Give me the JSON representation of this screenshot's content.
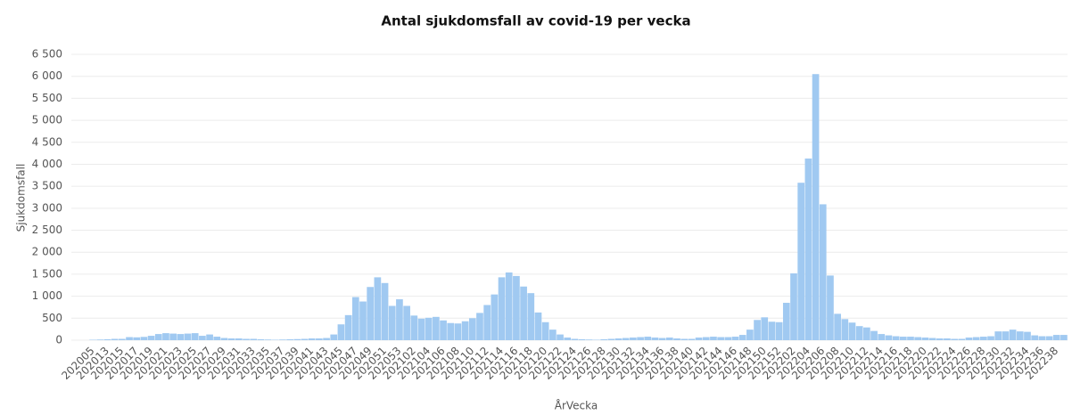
{
  "chart_data": {
    "type": "bar",
    "title": "Antal sjukdomsfall av covid-19 per vecka",
    "x_label": "ÅrVecka",
    "y_label": "Sjukdomsfall",
    "color": "#a0c9f1",
    "grid": true,
    "categories": [
      "202005",
      null,
      "202013",
      null,
      "202015",
      null,
      "202017",
      null,
      "202019",
      null,
      "202021",
      null,
      "202023",
      null,
      "202025",
      null,
      "202027",
      null,
      "202029",
      null,
      "202031",
      null,
      "202033",
      null,
      "202035",
      null,
      "202037",
      null,
      "202039",
      null,
      "202041",
      null,
      "202043",
      null,
      "202045",
      null,
      "202047",
      null,
      "202049",
      null,
      "202051",
      null,
      "202053",
      null,
      "202102",
      null,
      "202104",
      null,
      "202106",
      null,
      "202108",
      null,
      "202110",
      null,
      "202112",
      null,
      "202114",
      null,
      "202116",
      null,
      "202118",
      null,
      "202120",
      null,
      "202122",
      null,
      "202124",
      null,
      "202126",
      null,
      "202128",
      null,
      "202130",
      null,
      "202132",
      null,
      "202134",
      null,
      "202136",
      null,
      "202138",
      null,
      "202140",
      null,
      "202142",
      null,
      "202144",
      null,
      "202146",
      null,
      "202148",
      null,
      "202150",
      null,
      "202152",
      null,
      "202202",
      null,
      "202204",
      null,
      "202206",
      null,
      "202208",
      null,
      "202210",
      null,
      "202212",
      null,
      "202214",
      null,
      "202216",
      null,
      "202218",
      null,
      "202220",
      null,
      "202222",
      null,
      "202224",
      null,
      "202226",
      null,
      "202228",
      null,
      "202230",
      null,
      "202232",
      null,
      "202234",
      null,
      "202236",
      null,
      "202238",
      null
    ],
    "values": [
      10,
      15,
      20,
      30,
      30,
      70,
      65,
      75,
      100,
      140,
      160,
      150,
      140,
      150,
      160,
      100,
      130,
      80,
      50,
      40,
      40,
      30,
      30,
      20,
      15,
      10,
      15,
      20,
      25,
      30,
      40,
      40,
      50,
      130,
      360,
      570,
      980,
      880,
      1210,
      1430,
      1300,
      780,
      930,
      780,
      560,
      490,
      510,
      530,
      450,
      390,
      380,
      430,
      500,
      620,
      800,
      1040,
      1430,
      1540,
      1460,
      1220,
      1070,
      630,
      410,
      240,
      130,
      60,
      30,
      20,
      15,
      10,
      20,
      30,
      40,
      50,
      60,
      70,
      80,
      60,
      50,
      60,
      40,
      30,
      30,
      60,
      70,
      80,
      70,
      70,
      80,
      120,
      240,
      460,
      520,
      420,
      410,
      850,
      1520,
      3580,
      4130,
      6050,
      3090,
      1470,
      600,
      480,
      400,
      320,
      290,
      210,
      140,
      110,
      90,
      80,
      80,
      70,
      60,
      50,
      40,
      40,
      30,
      30,
      60,
      70,
      80,
      90,
      200,
      200,
      240,
      200,
      190,
      110,
      90,
      90,
      120,
      120
    ],
    "ylim": [
      0,
      6500
    ],
    "yticks": [
      0,
      500,
      {
        "value": 1000,
        "label": "1 000"
      },
      {
        "value": 1500,
        "label": "1 500"
      },
      {
        "value": 2000,
        "label": "2 000"
      },
      {
        "value": 2500,
        "label": "2 500"
      },
      {
        "value": 3000,
        "label": "3 000"
      },
      {
        "value": 3500,
        "label": "3 500"
      },
      {
        "value": 4000,
        "label": "4 000"
      },
      {
        "value": 4500,
        "label": "4 500"
      },
      {
        "value": 5000,
        "label": "5 000"
      },
      {
        "value": 5500,
        "label": "5 500"
      },
      {
        "value": 6000,
        "label": "6 000"
      },
      {
        "value": 6500,
        "label": "6 500"
      }
    ]
  }
}
